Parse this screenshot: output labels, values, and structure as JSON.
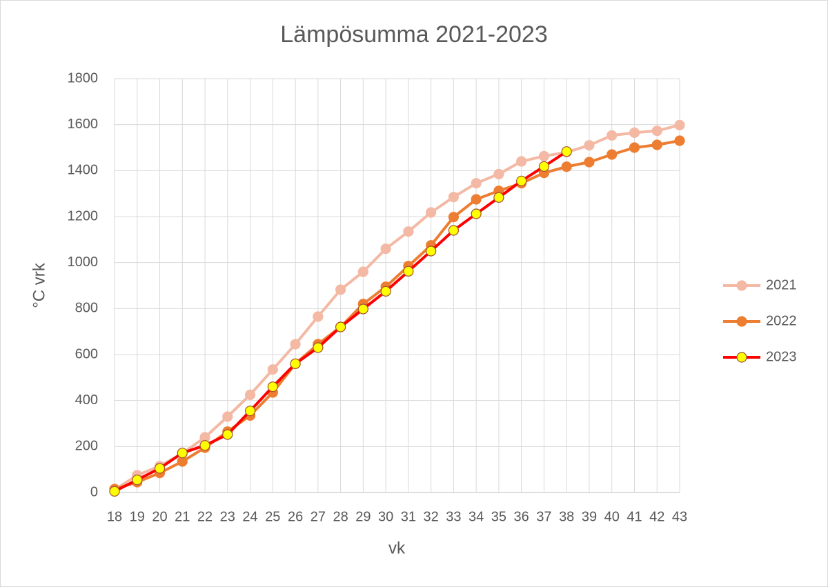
{
  "chart_data": {
    "type": "line",
    "title": "Lämpösumma 2021-2023",
    "x_label": "vk",
    "y_label": "°C vrk",
    "categories": [
      "18",
      "19",
      "20",
      "21",
      "22",
      "23",
      "24",
      "25",
      "26",
      "27",
      "28",
      "29",
      "30",
      "31",
      "32",
      "33",
      "34",
      "35",
      "36",
      "37",
      "38",
      "39",
      "40",
      "41",
      "42",
      "43"
    ],
    "series": [
      {
        "name": "2021",
        "color": "#f4b9a4",
        "marker_fill": "#f4b9a4",
        "values": [
          12,
          75,
          115,
          170,
          240,
          330,
          425,
          535,
          645,
          765,
          882,
          960,
          1060,
          1135,
          1218,
          1285,
          1345,
          1385,
          1440,
          1463,
          1480,
          1510,
          1553,
          1565,
          1573,
          1598
        ]
      },
      {
        "name": "2022",
        "color": "#ed7d31",
        "marker_fill": "#ed7d31",
        "values": [
          15,
          45,
          85,
          135,
          195,
          265,
          335,
          435,
          560,
          645,
          720,
          820,
          895,
          985,
          1075,
          1198,
          1275,
          1312,
          1345,
          1390,
          1417,
          1437,
          1470,
          1500,
          1512,
          1530
        ]
      },
      {
        "name": "2023",
        "color": "#ff0000",
        "marker_fill": "#ffff00",
        "values": [
          5,
          55,
          105,
          172,
          205,
          252,
          355,
          460,
          560,
          630,
          720,
          798,
          875,
          962,
          1050,
          1140,
          1212,
          1283,
          1355,
          1418,
          1483,
          null,
          null,
          null,
          null,
          null
        ]
      }
    ],
    "ylim": [
      0,
      1800
    ],
    "yticks": [
      0,
      200,
      400,
      600,
      800,
      1000,
      1200,
      1400,
      1600,
      1800
    ],
    "grid": true,
    "legend": "right"
  }
}
